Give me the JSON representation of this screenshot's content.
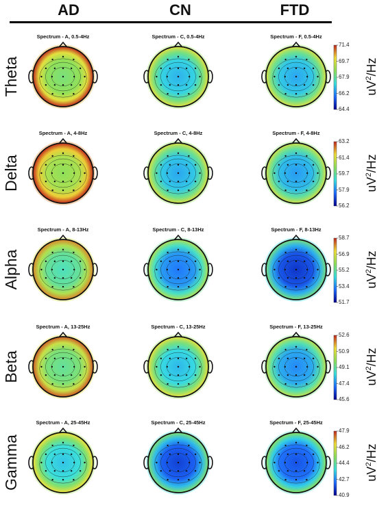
{
  "columns": [
    "AD",
    "CN",
    "FTD"
  ],
  "unit_label": {
    "base": "uV",
    "exp": "2",
    "tail": "/Hz"
  },
  "rows": [
    {
      "band": "Theta",
      "titles": [
        "Spectrum - A, 0.5-4Hz",
        "Spectrum - C, 0.5-4Hz",
        "Spectrum - F, 0.5-4Hz"
      ],
      "ticks": [
        "71.4",
        "69.7",
        "67.9",
        "66.2",
        "64.4"
      ],
      "levels": [
        0.55,
        0.32,
        0.3
      ]
    },
    {
      "band": "Delta",
      "titles": [
        "Spectrum - A, 4-8Hz",
        "Spectrum - C, 4-8Hz",
        "Spectrum - F, 4-8Hz"
      ],
      "ticks": [
        "63.2",
        "61.4",
        "59.7",
        "57.9",
        "56.2"
      ],
      "levels": [
        0.6,
        0.3,
        0.28
      ]
    },
    {
      "band": "Alpha",
      "titles": [
        "Spectrum - A, 8-13Hz",
        "Spectrum - C, 8-13Hz",
        "Spectrum - F, 8-13Hz"
      ],
      "ticks": [
        "58.7",
        "56.9",
        "55.2",
        "53.4",
        "51.7"
      ],
      "levels": [
        0.45,
        0.22,
        0.1
      ]
    },
    {
      "band": "Beta",
      "titles": [
        "Spectrum - A, 13-25Hz",
        "Spectrum - C, 13-25Hz",
        "Spectrum - F, 13-25Hz"
      ],
      "ticks": [
        "52.6",
        "50.9",
        "49.1",
        "47.4",
        "45.6"
      ],
      "levels": [
        0.5,
        0.33,
        0.25
      ]
    },
    {
      "band": "Gamma",
      "titles": [
        "Spectrum - A, 25-45Hz",
        "Spectrum - C, 25-45Hz",
        "Spectrum - F, 25-45Hz"
      ],
      "ticks": [
        "47.9",
        "46.2",
        "44.4",
        "42.7",
        "40.9"
      ],
      "levels": [
        0.35,
        0.12,
        0.15
      ]
    }
  ],
  "colors": {
    "low": "#00008f",
    "mid_low": "#1e6cff",
    "mid": "#38e0e0",
    "mid_high": "#8ee05a",
    "high": "#f2e03a",
    "top": "#c0281e"
  }
}
